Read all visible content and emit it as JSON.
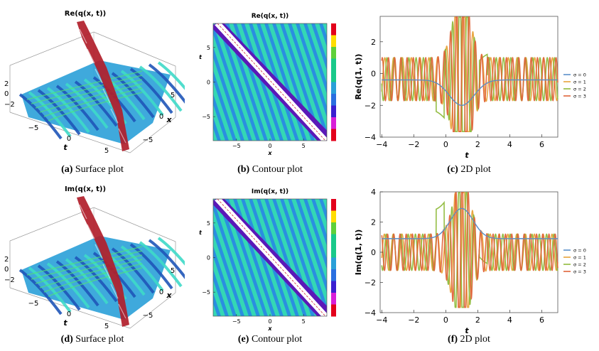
{
  "colors": {
    "wave_dark": "#1f55b8",
    "wave_mid": "#2aa0d8",
    "wave_light": "#3ed9c8",
    "wave_green": "#4fe07a",
    "peak_red": "#b11e2a",
    "contour_bg_a": "#2a8fe0",
    "contour_bg_b": "#34d7b4",
    "contour_band_purple": "#5b18b8",
    "contour_band_white": "#ffffff",
    "s0": "#5b8fc9",
    "s1": "#e8a33b",
    "s2": "#8fba3c",
    "s3": "#e0643a",
    "colorbar": [
      "#e3001b",
      "#ffdd00",
      "#5fd03a",
      "#19c98a",
      "#19c98a",
      "#2aa0d8",
      "#2a6fe0",
      "#3a1fd0",
      "#d81fd8",
      "#e3001b"
    ]
  },
  "panels": [
    {
      "id": "a",
      "caption_label": "(a)",
      "caption_text": "Surface plot",
      "chart_data": {
        "type": "surface3d",
        "title": "Re(q(x, t))",
        "zticks": [
          "2",
          "0",
          "−2"
        ],
        "tticks": [
          "−5",
          "0",
          "5"
        ],
        "xticks": [
          "5",
          "0",
          "−5"
        ],
        "tlabel": "t",
        "xlabel": "x"
      }
    },
    {
      "id": "b",
      "caption_label": "(b)",
      "caption_text": "Contour plot",
      "chart_data": {
        "type": "heatmap",
        "title": "Re(q(x, t))",
        "xticks": [
          "−5",
          "0",
          "5"
        ],
        "yticks": [
          "5",
          "0",
          "−5"
        ],
        "xlabel": "x",
        "ylabel": "t"
      }
    },
    {
      "id": "c",
      "caption_label": "(c)",
      "caption_text": "2D plot",
      "chart_data": {
        "type": "line",
        "title": "",
        "ylabel": "Re(q(1, t))",
        "xlabel": "t",
        "xlim": [
          -4.1,
          7
        ],
        "ylim": [
          -4,
          3.6
        ],
        "xticks": [
          -4,
          -2,
          0,
          2,
          4,
          6
        ],
        "xticklabels": [
          "−4",
          "−2",
          "0",
          "2",
          "4",
          "6"
        ],
        "yticks": [
          -4,
          -2,
          0,
          2
        ],
        "yticklabels": [
          "−4",
          "−2",
          "0",
          "2"
        ],
        "mode": "re",
        "legend": [
          "σ = 0",
          "σ = 1",
          "σ = 2",
          "σ = 3"
        ]
      }
    },
    {
      "id": "d",
      "caption_label": "(d)",
      "caption_text": "Surface plot",
      "chart_data": {
        "type": "surface3d",
        "title": "Im(q(x, t))",
        "zticks": [
          "2",
          "0",
          "−2"
        ],
        "tticks": [
          "−5",
          "0",
          "5"
        ],
        "xticks": [
          "5",
          "0",
          "−5"
        ],
        "tlabel": "t",
        "xlabel": "x"
      }
    },
    {
      "id": "e",
      "caption_label": "(e)",
      "caption_text": "Contour plot",
      "chart_data": {
        "type": "heatmap",
        "title": "Im(q(x, t))",
        "xticks": [
          "−5",
          "0",
          "5"
        ],
        "yticks": [
          "5",
          "0",
          "−5"
        ],
        "xlabel": "x",
        "ylabel": "t"
      }
    },
    {
      "id": "f",
      "caption_label": "(f)",
      "caption_text": "2D plot",
      "chart_data": {
        "type": "line",
        "title": "",
        "ylabel": "Im(q(1, t))",
        "xlabel": "t",
        "xlim": [
          -4.1,
          7
        ],
        "ylim": [
          -4,
          4
        ],
        "xticks": [
          -4,
          -2,
          0,
          2,
          4,
          6
        ],
        "xticklabels": [
          "−4",
          "−2",
          "0",
          "2",
          "4",
          "6"
        ],
        "yticks": [
          -4,
          -2,
          0,
          2,
          4
        ],
        "yticklabels": [
          "−4",
          "−2",
          "0",
          "2",
          "4"
        ],
        "mode": "im",
        "legend": [
          "σ = 0",
          "σ = 1",
          "σ = 2",
          "σ = 3"
        ]
      }
    }
  ]
}
